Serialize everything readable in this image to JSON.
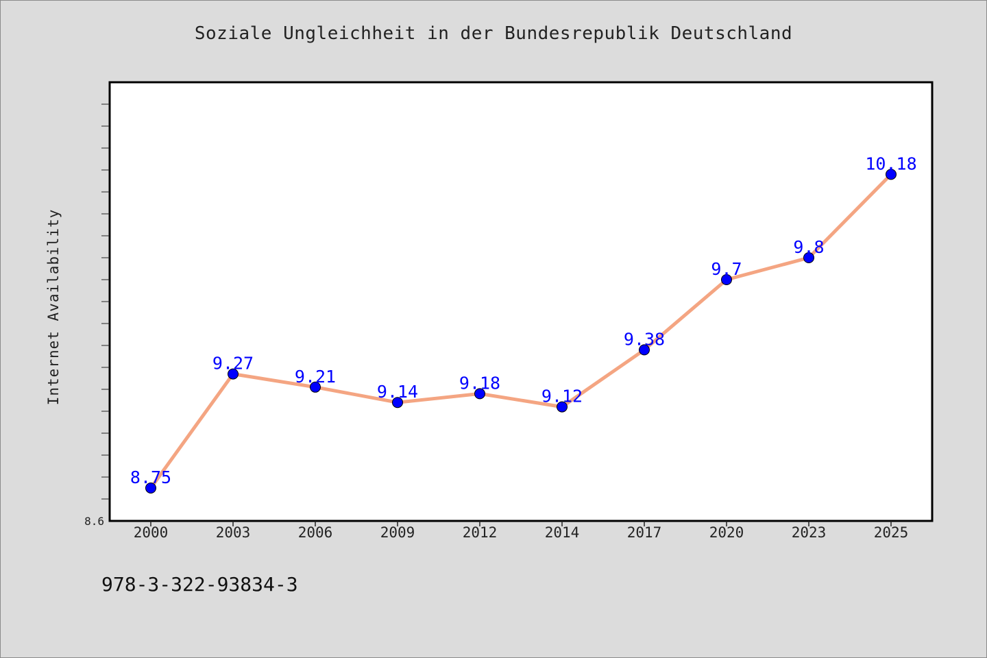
{
  "chart_data": {
    "type": "line",
    "title": "Soziale Ungleichheit in der Bundesrepublik Deutschland",
    "xlabel": "",
    "ylabel": "Internet Availability",
    "categories": [
      "2000",
      "2003",
      "2006",
      "2009",
      "2012",
      "2014",
      "2017",
      "2020",
      "2023",
      "2025"
    ],
    "series": [
      {
        "values": [
          8.75,
          9.27,
          9.21,
          9.14,
          9.18,
          9.12,
          9.38,
          9.7,
          9.8,
          10.18
        ]
      }
    ],
    "data_labels": [
      "8.75",
      "9.27",
      "9.21",
      "9.14",
      "9.18",
      "9.12",
      "9.38",
      "9.7",
      "9.8",
      "10.18"
    ],
    "y_tick_labels": [
      "8.6"
    ],
    "ylim": [
      8.6,
      10.6
    ],
    "grid": false,
    "legend": "none",
    "colors": {
      "line": "#f4a582",
      "marker": "#0000ff",
      "label": "#0000ff",
      "plot_background": "#ffffff",
      "figure_background": "#dcdcdc"
    }
  },
  "footer": {
    "isbn": "978-3-322-93834-3"
  }
}
